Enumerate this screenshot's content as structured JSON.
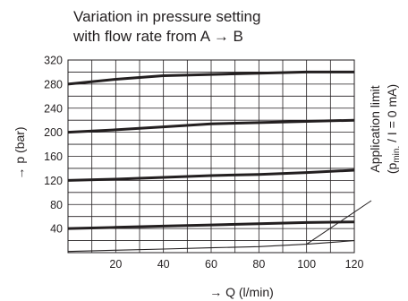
{
  "chart_data": {
    "type": "line",
    "title_line1": "Variation in pressure setting",
    "title_line2": "with flow rate from A → B",
    "xlabel": "→ Q (l/min)",
    "ylabel": "→ p (bar)",
    "xlim": [
      0,
      120
    ],
    "ylim": [
      0,
      320
    ],
    "xticks": [
      "20",
      "40",
      "60",
      "80",
      "100",
      "120"
    ],
    "yticks": [
      "40",
      "80",
      "120",
      "160",
      "200",
      "240",
      "280",
      "320"
    ],
    "grid": true,
    "series": [
      {
        "x": [
          0,
          20,
          40,
          60,
          80,
          100,
          120
        ],
        "y": [
          280,
          288,
          294,
          296,
          298,
          300,
          300
        ],
        "weight": "bold"
      },
      {
        "x": [
          0,
          20,
          40,
          60,
          80,
          100,
          120
        ],
        "y": [
          200,
          204,
          209,
          214,
          216,
          218,
          220
        ],
        "weight": "bold"
      },
      {
        "x": [
          0,
          20,
          40,
          60,
          80,
          100,
          120
        ],
        "y": [
          120,
          122,
          125,
          128,
          130,
          133,
          137
        ],
        "weight": "bold"
      },
      {
        "x": [
          0,
          20,
          40,
          60,
          80,
          100,
          120
        ],
        "y": [
          40,
          42,
          44,
          46,
          48,
          50,
          51
        ],
        "weight": "bold"
      },
      {
        "name": "Application limit",
        "x": [
          0,
          20,
          40,
          60,
          80,
          100,
          120
        ],
        "y": [
          2,
          4,
          6,
          8,
          10,
          14,
          20
        ],
        "weight": "thin"
      }
    ],
    "annotation": {
      "line1": "Application limit",
      "line2_prefix": "(p",
      "line2_sub": "min.",
      "line2_suffix": " / I = 0 mA)",
      "points_to": {
        "x": 100,
        "y": 14
      }
    }
  }
}
